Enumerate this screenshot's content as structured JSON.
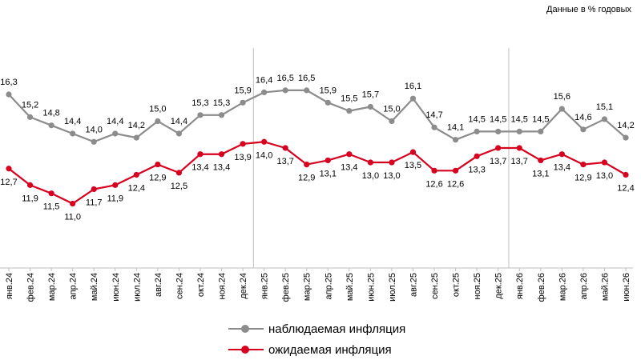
{
  "chart_data": {
    "type": "line",
    "title": "",
    "units_note": "Данные в % годовых",
    "xlabel": "",
    "ylabel": "",
    "ylim": [
      10,
      17.5
    ],
    "grid": false,
    "legend_position": "bottom",
    "categories": [
      "янв.24",
      "фев.24",
      "мар.24",
      "апр.24",
      "май.24",
      "июн.24",
      "июл.24",
      "авг.24",
      "сен.24",
      "окт.24",
      "ноя.24",
      "дек.24",
      "янв.25",
      "фев.25",
      "мар.25",
      "апр.25",
      "май.25",
      "июн.25",
      "июл.25",
      "авг.25",
      "сен.25",
      "окт.25",
      "ноя.25",
      "дек.25",
      "янв.26",
      "фев.26",
      "мар.26",
      "апр.26",
      "май.26",
      "июн.26"
    ],
    "series": [
      {
        "name": "наблюдаемая инфляция",
        "color": "#8c8c8c",
        "values": [
          16.3,
          15.2,
          14.8,
          14.4,
          14.0,
          14.4,
          14.2,
          15.0,
          14.4,
          15.3,
          15.3,
          15.9,
          16.4,
          16.5,
          16.5,
          15.9,
          15.5,
          15.7,
          15.0,
          16.1,
          14.7,
          14.1,
          14.5,
          14.5,
          14.5,
          14.5,
          15.6,
          14.6,
          15.1,
          14.2
        ],
        "labels": [
          "16,3",
          "15,2",
          "14,8",
          "14,4",
          "14,0",
          "14,4",
          "14,2",
          "15,0",
          "14,4",
          "15,3",
          "15,3",
          "15,9",
          "16,4",
          "16,5",
          "16,5",
          "15,9",
          "15,5",
          "15,7",
          "15,0",
          "16,1",
          "14,7",
          "14,1",
          "14,5",
          "14,5",
          "14,5",
          "14,5",
          "15,6",
          "14,6",
          "15,1",
          "14,2"
        ]
      },
      {
        "name": "ожидаемая инфляция",
        "color": "#d7001e",
        "values": [
          12.7,
          11.9,
          11.5,
          11.0,
          11.7,
          11.9,
          12.4,
          12.9,
          12.5,
          13.4,
          13.4,
          13.9,
          14.0,
          13.7,
          12.9,
          13.1,
          13.4,
          13.0,
          13.0,
          13.5,
          12.6,
          12.6,
          13.3,
          13.7,
          13.7,
          13.1,
          13.4,
          12.9,
          13.0,
          12.4
        ],
        "labels": [
          "12,7",
          "11,9",
          "11,5",
          "11,0",
          "11,7",
          "11,9",
          "12,4",
          "12,9",
          "12,5",
          "13,4",
          "13,4",
          "13,9",
          "14,0",
          "13,7",
          "12,9",
          "13,1",
          "13,4",
          "13,0",
          "13,0",
          "13,5",
          "12,6",
          "12,6",
          "13,3",
          "13,7",
          "13,7",
          "13,1",
          "13,4",
          "12,9",
          "13,0",
          "12,4"
        ]
      }
    ],
    "year_separators_after": [
      "дек.24",
      "дек.25"
    ]
  }
}
